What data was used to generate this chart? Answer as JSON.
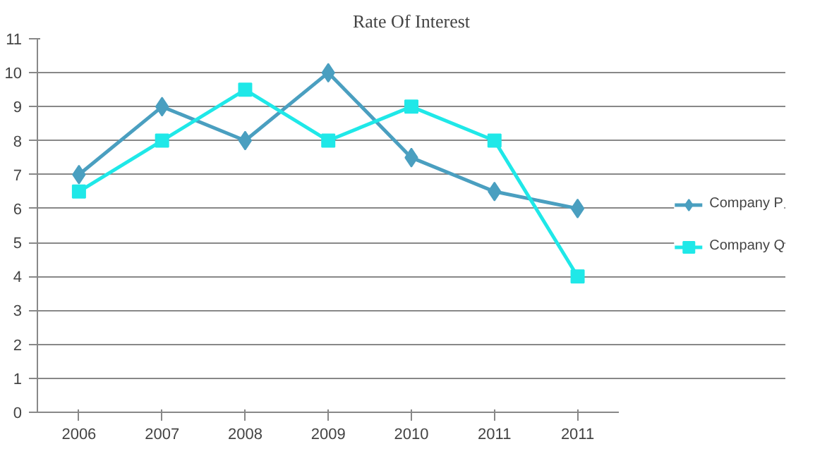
{
  "chart_data": {
    "type": "line",
    "title": "Rate Of Interest",
    "categories": [
      "2006",
      "2007",
      "2008",
      "2009",
      "2010",
      "2011",
      "2011"
    ],
    "series": [
      {
        "name": "Company P",
        "color": "#4a9fc0",
        "marker": "diamond",
        "values": [
          7,
          9,
          8,
          10,
          7.5,
          6.5,
          6
        ]
      },
      {
        "name": "Company Q",
        "color": "#1fe8e8",
        "marker": "square",
        "values": [
          6.5,
          8,
          9.5,
          8,
          9,
          8,
          4
        ]
      }
    ],
    "ylim": [
      0,
      11
    ],
    "yticks": [
      0,
      1,
      2,
      3,
      4,
      5,
      6,
      7,
      8,
      9,
      10,
      11
    ],
    "grid": "y",
    "legend": "right"
  }
}
